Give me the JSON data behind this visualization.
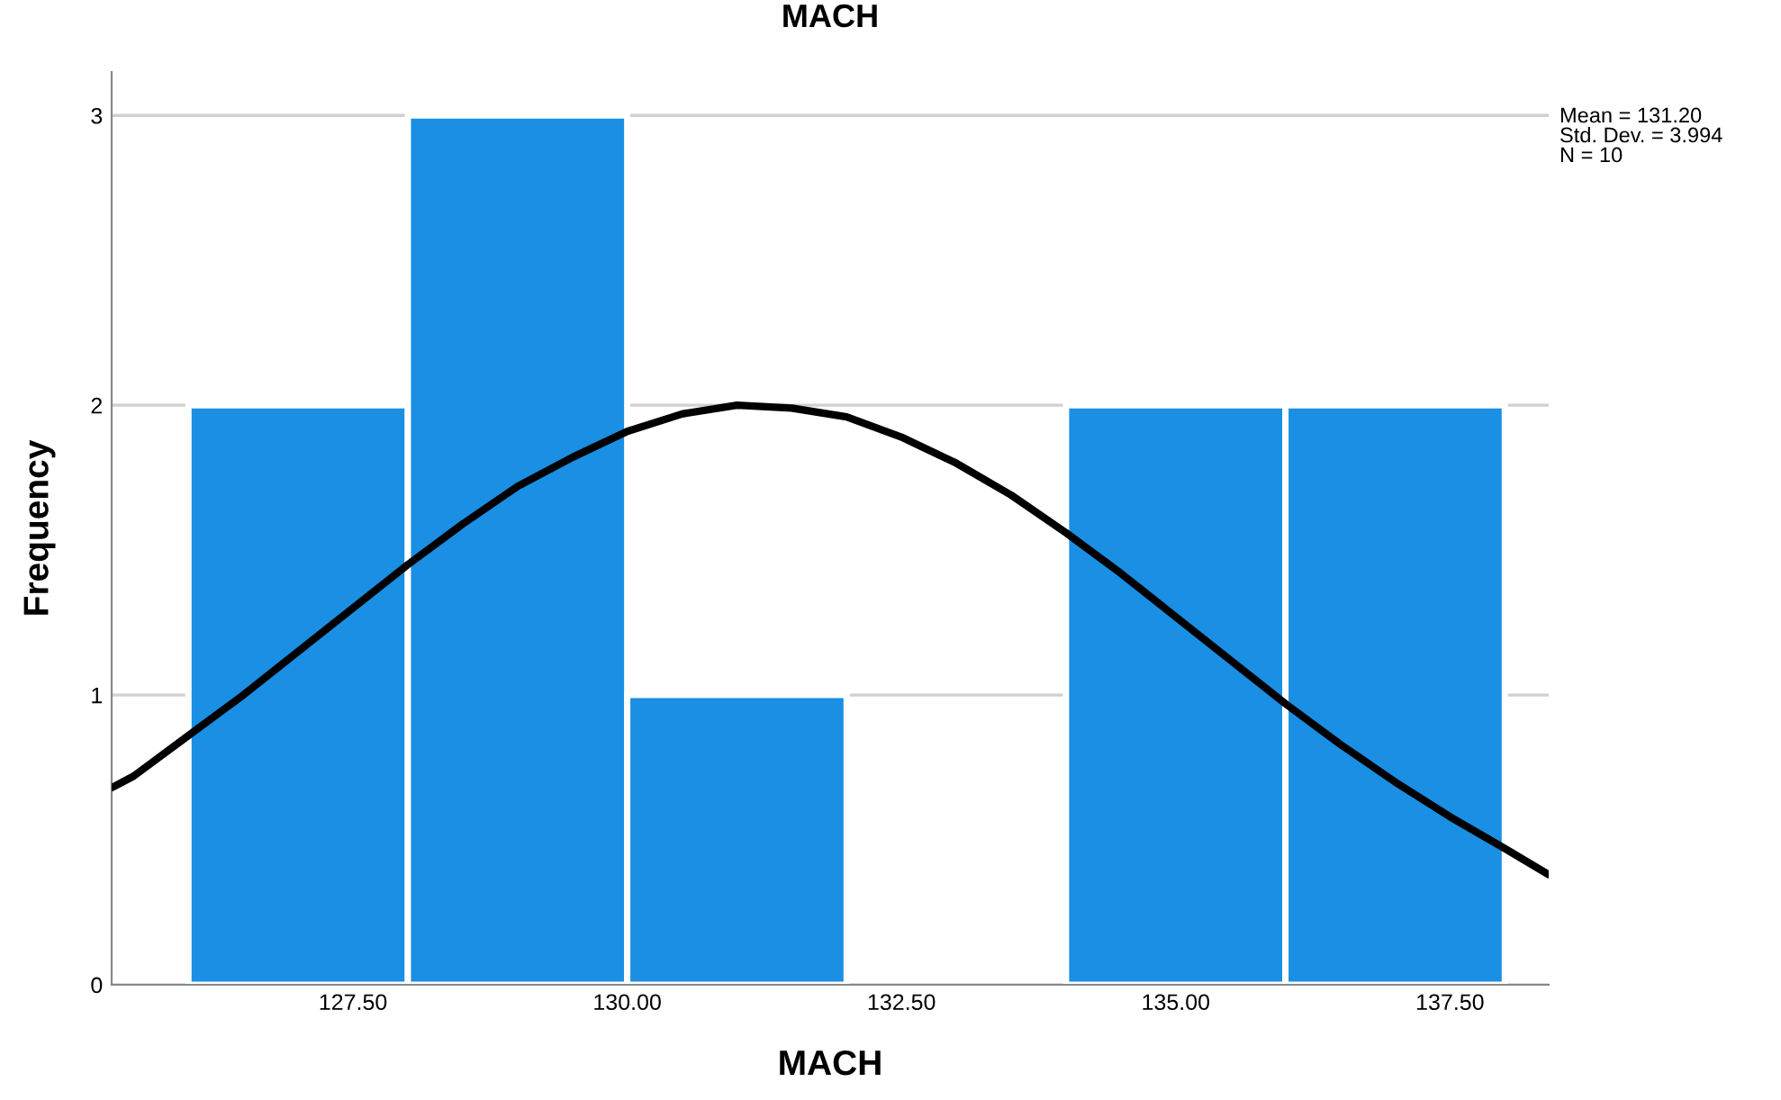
{
  "chart_data": {
    "type": "histogram",
    "title": "MACH",
    "xlabel": "MACH",
    "ylabel": "Frequency",
    "bins": [
      126,
      128,
      130,
      132,
      134,
      136,
      138
    ],
    "values": [
      2,
      3,
      1,
      0,
      2,
      2
    ],
    "color": "#1a8fe3",
    "series": [
      {
        "type": "line",
        "color": "#000000",
        "x": [
          125.3,
          125.5,
          126,
          126.5,
          127,
          127.5,
          128,
          128.5,
          129,
          129.5,
          130,
          130.5,
          131,
          131.5,
          132,
          132.5,
          133,
          133.5,
          134,
          134.5,
          135,
          135.5,
          136,
          136.5,
          137,
          137.5,
          138,
          138.4
        ],
        "values": [
          0.68,
          0.72,
          0.86,
          1.0,
          1.15,
          1.3,
          1.45,
          1.59,
          1.72,
          1.82,
          1.91,
          1.97,
          2.0,
          1.99,
          1.96,
          1.89,
          1.8,
          1.69,
          1.56,
          1.42,
          1.27,
          1.12,
          0.97,
          0.83,
          0.7,
          0.58,
          0.47,
          0.38
        ]
      }
    ],
    "xlim": [
      125.3,
      138.4
    ],
    "ylim": [
      0,
      3.15
    ],
    "xticks": [
      {
        "value": 127.5,
        "label": "127.50"
      },
      {
        "value": 130,
        "label": "130.00"
      },
      {
        "value": 132.5,
        "label": "132.50"
      },
      {
        "value": 135,
        "label": "135.00"
      },
      {
        "value": 137.5,
        "label": "137.50"
      }
    ],
    "yticks": [
      0,
      1,
      2,
      3
    ],
    "grid": "y",
    "legend": false,
    "annotations": [
      "Mean = 131.20",
      "Std. Dev. = 3.994",
      "N = 10"
    ]
  }
}
